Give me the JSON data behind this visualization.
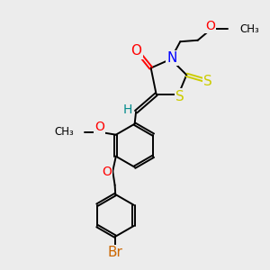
{
  "bg_color": "#ececec",
  "bond_color": "#000000",
  "bond_width": 1.4,
  "atom_colors": {
    "O": "#ff0000",
    "N": "#0000ff",
    "S": "#cccc00",
    "Br": "#cc6600",
    "H": "#008b8b",
    "C": "#000000"
  },
  "font_size_atom": 10,
  "font_size_small": 8.5
}
